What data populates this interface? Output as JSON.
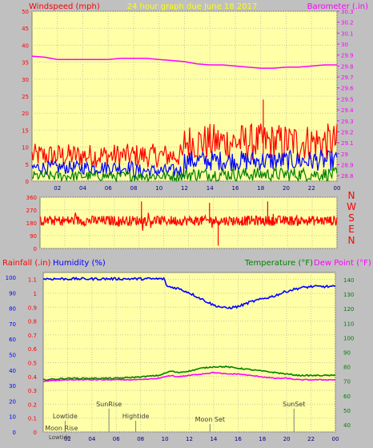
{
  "header": {
    "left_label": "Windspeed (mph)",
    "title": "24 hour graph due   June 18 2017",
    "right_label": "Barometer (.in)"
  },
  "compass": [
    "N",
    "W",
    "S",
    "E",
    "N"
  ],
  "bottom_header": {
    "rain_label": "Rainfall (.in)",
    "humidity_label": "Humidity (%)",
    "temp_label": "Temperature (°F)",
    "dew_label": "Dew Point (°F)"
  },
  "colors": {
    "plot_bg": "#ffffa8",
    "wind_gust": "#ff0000",
    "wind_avg": "#0000ff",
    "wind_low": "#008000",
    "barometer": "#ff00ff",
    "direction": "#ff0000",
    "humidity": "#0000ff",
    "temperature": "#008000",
    "dewpoint": "#ff00ff"
  },
  "events": [
    {
      "label": "Lowtide",
      "hour": 1.8,
      "row": "low"
    },
    {
      "label": "Moon Rise",
      "hour": 1.5,
      "row": "lowest"
    },
    {
      "label": "SunRise",
      "hour": 5.4,
      "row": "high"
    },
    {
      "label": "Hightide",
      "hour": 7.6,
      "row": "low"
    },
    {
      "label": "Moon Set",
      "hour": 13.7,
      "row": "mid"
    },
    {
      "label": "SunSet",
      "hour": 20.6,
      "row": "high"
    }
  ],
  "extra_label": "Lowtide",
  "chart_data": [
    {
      "type": "line",
      "name": "wind",
      "x_ticks": [
        "02",
        "04",
        "06",
        "08",
        "10",
        "12",
        "14",
        "16",
        "18",
        "20",
        "22",
        "00"
      ],
      "y_left_ticks": [
        "0",
        "5",
        "10",
        "15",
        "20",
        "25",
        "30",
        "35",
        "40",
        "45",
        "50"
      ],
      "y_left_lim": [
        0,
        50
      ],
      "y_right_ticks": [
        "28.8",
        "28.9",
        "29",
        "29.1",
        "29.2",
        "29.3",
        "29.4",
        "29.5",
        "29.6",
        "29.7",
        "29.8",
        "29.9",
        "30",
        "30.1",
        "30.2",
        "30.3"
      ],
      "y_right_lim": [
        28.75,
        30.3
      ],
      "barometer_points": [
        [
          0,
          29.89
        ],
        [
          1,
          29.88
        ],
        [
          2,
          29.86
        ],
        [
          3,
          29.86
        ],
        [
          4,
          29.86
        ],
        [
          5,
          29.86
        ],
        [
          6,
          29.86
        ],
        [
          7,
          29.87
        ],
        [
          8,
          29.87
        ],
        [
          9,
          29.87
        ],
        [
          10,
          29.86
        ],
        [
          11,
          29.85
        ],
        [
          12,
          29.84
        ],
        [
          13,
          29.82
        ],
        [
          14,
          29.81
        ],
        [
          15,
          29.81
        ],
        [
          16,
          29.8
        ],
        [
          17,
          29.79
        ],
        [
          18,
          29.78
        ],
        [
          19,
          29.78
        ],
        [
          20,
          29.79
        ],
        [
          21,
          29.79
        ],
        [
          22,
          29.8
        ],
        [
          23,
          29.81
        ],
        [
          24,
          29.81
        ]
      ],
      "gust_segments": [
        [
          0,
          12,
          4,
          11
        ],
        [
          12,
          24,
          6,
          17
        ]
      ],
      "avg_segments": [
        [
          0,
          8,
          2,
          6
        ],
        [
          8,
          12,
          1,
          5
        ],
        [
          12,
          24,
          3,
          9
        ]
      ],
      "low_segments": [
        [
          0,
          12,
          0,
          3
        ],
        [
          12,
          24,
          0,
          4
        ]
      ],
      "gust_peak": [
        [
          18.2,
          24
        ]
      ]
    },
    {
      "type": "line",
      "name": "direction",
      "y_ticks": [
        "0",
        "90",
        "180",
        "270",
        "360"
      ],
      "y_lim": [
        0,
        360
      ],
      "mean": 195,
      "spread": [
        120,
        260
      ],
      "spikes": [
        [
          8.2,
          330
        ],
        [
          13.7,
          320
        ],
        [
          18.4,
          330
        ],
        [
          14.4,
          20
        ]
      ]
    },
    {
      "type": "line",
      "name": "rain-humidity-temp",
      "x_ticks": [
        "02",
        "04",
        "06",
        "08",
        "10",
        "12",
        "14",
        "16",
        "18",
        "20",
        "22",
        "00"
      ],
      "y_left_ticks": [
        "0",
        "0.1",
        "0.2",
        "0.3",
        "0.4",
        "0.5",
        "0.6",
        "0.7",
        "0.8",
        "0.9",
        "1",
        "1.1"
      ],
      "y_left_lim": [
        0,
        1.15
      ],
      "y_humidity_ticks": [
        "0",
        "10",
        "20",
        "30",
        "40",
        "50",
        "60",
        "70",
        "80",
        "90",
        "100"
      ],
      "y_right_ticks": [
        "40",
        "50",
        "60",
        "70",
        "80",
        "90",
        "100",
        "110",
        "120",
        "130",
        "140"
      ],
      "y_right_lim": [
        35,
        145
      ],
      "humidity_points": [
        [
          0,
          99
        ],
        [
          9.9,
          99
        ],
        [
          10.2,
          94
        ],
        [
          11,
          93
        ],
        [
          12,
          90
        ],
        [
          13,
          86
        ],
        [
          14,
          82
        ],
        [
          15,
          80
        ],
        [
          16,
          81
        ],
        [
          17,
          84
        ],
        [
          18,
          86
        ],
        [
          19,
          88
        ],
        [
          20,
          91
        ],
        [
          21,
          93
        ],
        [
          22,
          94
        ],
        [
          24,
          94
        ]
      ],
      "temperature_points": [
        [
          0,
          71
        ],
        [
          2,
          72
        ],
        [
          4,
          72
        ],
        [
          6,
          72
        ],
        [
          8,
          73
        ],
        [
          9.5,
          74
        ],
        [
          10.5,
          77
        ],
        [
          11,
          76
        ],
        [
          12,
          77
        ],
        [
          13,
          79
        ],
        [
          14,
          80
        ],
        [
          15,
          80
        ],
        [
          16,
          79
        ],
        [
          17,
          78
        ],
        [
          18,
          77
        ],
        [
          19,
          76
        ],
        [
          20,
          75
        ],
        [
          21,
          74
        ],
        [
          22,
          74
        ],
        [
          24,
          74
        ]
      ],
      "dewpoint_points": [
        [
          0,
          70
        ],
        [
          2,
          71
        ],
        [
          4,
          71
        ],
        [
          6,
          71
        ],
        [
          8,
          71
        ],
        [
          9.5,
          72
        ],
        [
          10.5,
          74
        ],
        [
          11,
          73
        ],
        [
          12,
          74
        ],
        [
          13,
          75
        ],
        [
          14,
          76
        ],
        [
          15,
          75
        ],
        [
          16,
          75
        ],
        [
          17,
          74
        ],
        [
          18,
          73
        ],
        [
          19,
          72
        ],
        [
          20,
          72
        ],
        [
          21,
          71
        ],
        [
          22,
          71
        ],
        [
          24,
          71
        ]
      ]
    }
  ]
}
